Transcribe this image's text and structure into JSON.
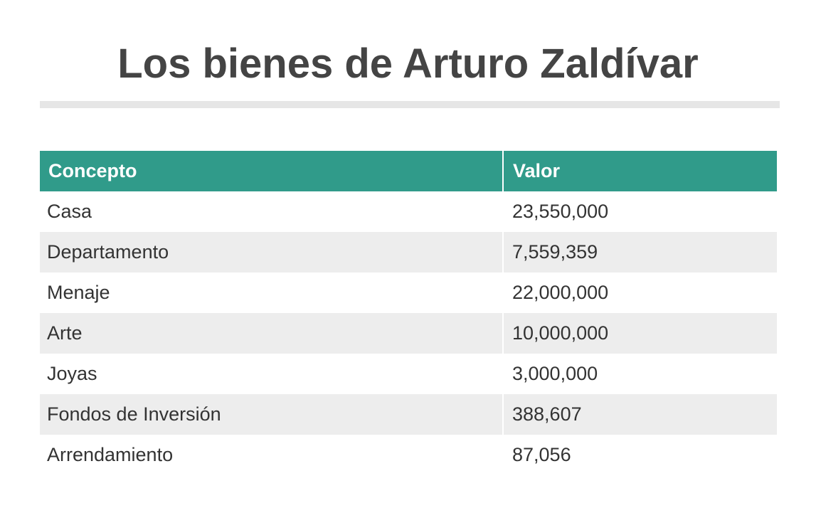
{
  "title": "Los bienes de Arturo Zaldívar",
  "colors": {
    "header_bg": "#309b8a",
    "header_text": "#ffffff",
    "row_alt_bg": "#ededed",
    "title_text": "#444444",
    "rule": "#e6e6e6"
  },
  "chart_data": {
    "type": "table",
    "title": "Los bienes de Arturo Zaldívar",
    "columns": [
      "Concepto",
      "Valor"
    ],
    "rows": [
      {
        "concepto": "Casa",
        "valor": "23,550,000"
      },
      {
        "concepto": "Departamento",
        "valor": "7,559,359"
      },
      {
        "concepto": "Menaje",
        "valor": "22,000,000"
      },
      {
        "concepto": "Arte",
        "valor": "10,000,000"
      },
      {
        "concepto": "Joyas",
        "valor": "3,000,000"
      },
      {
        "concepto": "Fondos de Inversión",
        "valor": "388,607"
      },
      {
        "concepto": "Arrendamiento",
        "valor": "87,056"
      }
    ]
  }
}
